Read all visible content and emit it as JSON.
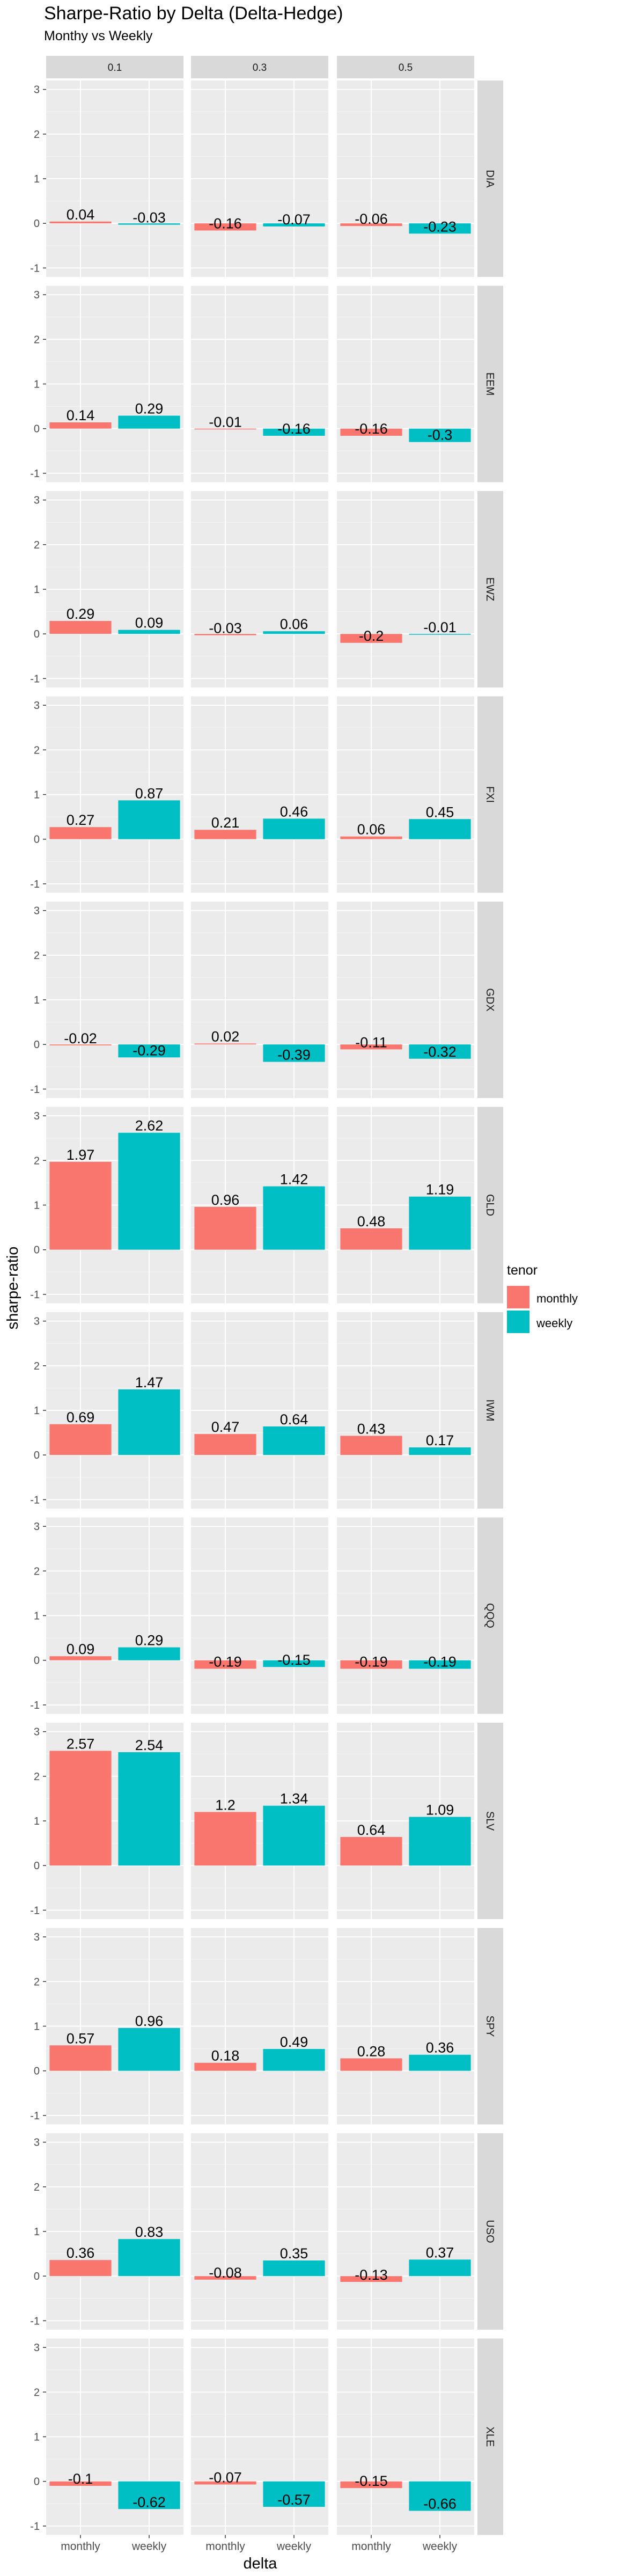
{
  "chart_data": {
    "type": "bar",
    "title": "Sharpe-Ratio by Delta (Delta-Hedge)",
    "subtitle": "Monthy vs Weekly",
    "xlabel": "delta",
    "ylabel": "sharpe-ratio",
    "ylim": [
      -1.2,
      3.2
    ],
    "y_ticks": [
      "-1",
      "0",
      "1",
      "2",
      "3"
    ],
    "grid": true,
    "legend_position": "right",
    "categories": [
      "monthly",
      "weekly"
    ],
    "legend": {
      "title": "tenor",
      "items": [
        {
          "label": "monthly",
          "color": "#F8766D"
        },
        {
          "label": "weekly",
          "color": "#00BFC4"
        }
      ]
    },
    "facet_columns": [
      "0.1",
      "0.3",
      "0.5"
    ],
    "facet_rows": [
      {
        "name": "DIA",
        "values": [
          [
            0.04,
            -0.03
          ],
          [
            -0.16,
            -0.07
          ],
          [
            -0.06,
            -0.23
          ]
        ]
      },
      {
        "name": "EEM",
        "values": [
          [
            0.14,
            0.29
          ],
          [
            -0.01,
            -0.16
          ],
          [
            -0.16,
            -0.3
          ]
        ]
      },
      {
        "name": "EWZ",
        "values": [
          [
            0.29,
            0.09
          ],
          [
            -0.03,
            0.06
          ],
          [
            -0.2,
            -0.01
          ]
        ]
      },
      {
        "name": "FXI",
        "values": [
          [
            0.27,
            0.87
          ],
          [
            0.21,
            0.46
          ],
          [
            0.06,
            0.45
          ]
        ]
      },
      {
        "name": "GDX",
        "values": [
          [
            -0.02,
            -0.29
          ],
          [
            0.02,
            -0.39
          ],
          [
            -0.11,
            -0.32
          ]
        ]
      },
      {
        "name": "GLD",
        "values": [
          [
            1.97,
            2.62
          ],
          [
            0.96,
            1.42
          ],
          [
            0.48,
            1.19
          ]
        ]
      },
      {
        "name": "IWM",
        "values": [
          [
            0.69,
            1.47
          ],
          [
            0.47,
            0.64
          ],
          [
            0.43,
            0.17
          ]
        ]
      },
      {
        "name": "QQQ",
        "values": [
          [
            0.09,
            0.29
          ],
          [
            -0.19,
            -0.15
          ],
          [
            -0.19,
            -0.19
          ]
        ]
      },
      {
        "name": "SLV",
        "values": [
          [
            2.57,
            2.54
          ],
          [
            1.2,
            1.34
          ],
          [
            0.64,
            1.09
          ]
        ]
      },
      {
        "name": "SPY",
        "values": [
          [
            0.57,
            0.96
          ],
          [
            0.18,
            0.49
          ],
          [
            0.28,
            0.36
          ]
        ]
      },
      {
        "name": "USO",
        "values": [
          [
            0.36,
            0.83
          ],
          [
            -0.08,
            0.35
          ],
          [
            -0.13,
            0.37
          ]
        ]
      },
      {
        "name": "XLE",
        "values": [
          [
            -0.1,
            -0.62
          ],
          [
            -0.07,
            -0.57
          ],
          [
            -0.15,
            -0.66
          ]
        ]
      }
    ]
  }
}
